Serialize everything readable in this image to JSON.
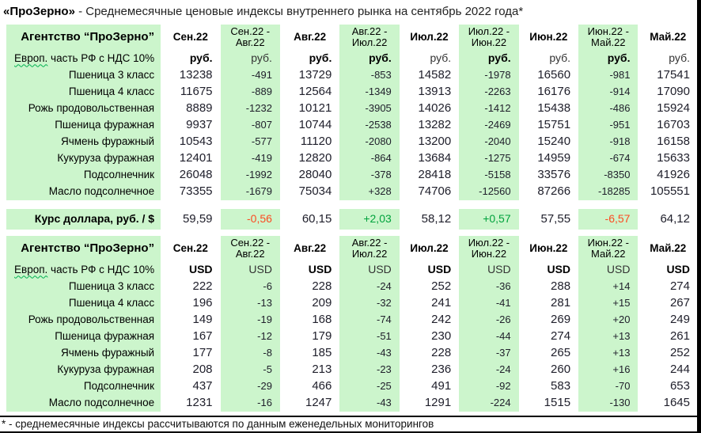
{
  "title": {
    "brand": "«ПроЗерно»",
    "rest": " - Среднемесячные ценовые индексы внутреннего рынка на сентябрь 2022 года*"
  },
  "footer": {
    "text": "* - среднемесячные индексы рассчитываются по данным еженедельных мониторингов"
  },
  "colors": {
    "cell_green": "#ccf5cc",
    "negative_text": "#fc4b22",
    "positive_text": "#00a23c",
    "value_text": "#20202c",
    "border_black": "#000000",
    "spellcheck_squiggle": "#00b050"
  },
  "chart_data": {
    "type": "table",
    "title": "«ПроЗерно» - Среднемесячные ценовые индексы внутреннего рынка на сентябрь 2022 года*",
    "columns": [
      [
        "Сен.22"
      ],
      [
        "Сен.22 -",
        "Авг.22"
      ],
      [
        "Авг.22"
      ],
      [
        "Авг.22 -",
        "Июл.22"
      ],
      [
        "Июл.22"
      ],
      [
        "Июл.22 -",
        "Июн.22"
      ],
      [
        "Июн.22"
      ],
      [
        "Июн.22 -",
        "Май.22"
      ],
      [
        "Май.22"
      ]
    ],
    "column_kinds": [
      "month",
      "diff",
      "month",
      "diff",
      "month",
      "diff",
      "month",
      "diff",
      "month"
    ],
    "sections": [
      {
        "name": "rub",
        "corner": "Агентство “ПроЗерно”",
        "region_wavy": "Европ.",
        "region_rest": " часть РФ с НДС 10%",
        "unit": "руб.",
        "unit_bold": [
          true,
          false,
          true,
          true,
          false,
          true,
          false,
          true,
          false
        ],
        "categories": [
          "Пшеница 3 класс",
          "Пшеница 4 класс",
          "Рожь продовольственная",
          "Пшеница фуражная",
          "Ячмень фуражный",
          "Кукуруза фуражная",
          "Подсолнечник",
          "Масло подсолнечное"
        ],
        "rows": [
          [
            "13238",
            "-491",
            "13729",
            "-853",
            "14582",
            "-1978",
            "16560",
            "-981",
            "17541"
          ],
          [
            "11675",
            "-889",
            "12564",
            "-1349",
            "13913",
            "-2263",
            "16176",
            "-914",
            "17090"
          ],
          [
            "8889",
            "-1232",
            "10121",
            "-3905",
            "14026",
            "-1412",
            "15438",
            "-486",
            "15924"
          ],
          [
            "9937",
            "-807",
            "10744",
            "-2538",
            "13282",
            "-2469",
            "15751",
            "-951",
            "16703"
          ],
          [
            "10543",
            "-577",
            "11120",
            "-2080",
            "13200",
            "-2040",
            "15240",
            "-918",
            "16158"
          ],
          [
            "12401",
            "-419",
            "12820",
            "-864",
            "13684",
            "-1275",
            "14959",
            "-674",
            "15633"
          ],
          [
            "26048",
            "-1992",
            "28040",
            "-378",
            "28418",
            "-5158",
            "33576",
            "-8350",
            "41926"
          ],
          [
            "73355",
            "-1679",
            "75034",
            "+328",
            "74706",
            "-12560",
            "87266",
            "-18285",
            "105551"
          ]
        ]
      },
      {
        "name": "usd",
        "corner": "Агентство “ПроЗерно”",
        "region_wavy": "Европ.",
        "region_rest": " часть РФ с НДС 10%",
        "unit": "USD",
        "unit_bold": [
          true,
          false,
          true,
          false,
          true,
          false,
          true,
          false,
          true
        ],
        "categories": [
          "Пшеница 3 класс",
          "Пшеница 4 класс",
          "Рожь продовольственная",
          "Пшеница фуражная",
          "Ячмень фуражный",
          "Кукуруза фуражная",
          "Подсолнечник",
          "Масло подсолнечное"
        ],
        "rows": [
          [
            "222",
            "-6",
            "228",
            "-24",
            "252",
            "-36",
            "288",
            "+14",
            "274"
          ],
          [
            "196",
            "-13",
            "209",
            "-32",
            "241",
            "-41",
            "281",
            "+15",
            "267"
          ],
          [
            "149",
            "-19",
            "168",
            "-74",
            "242",
            "-26",
            "269",
            "+20",
            "249"
          ],
          [
            "167",
            "-12",
            "179",
            "-51",
            "230",
            "-44",
            "274",
            "+13",
            "261"
          ],
          [
            "177",
            "-8",
            "185",
            "-43",
            "228",
            "-37",
            "265",
            "+13",
            "252"
          ],
          [
            "208",
            "-5",
            "213",
            "-23",
            "236",
            "-24",
            "260",
            "+16",
            "244"
          ],
          [
            "437",
            "-29",
            "466",
            "-25",
            "491",
            "-92",
            "583",
            "-70",
            "653"
          ],
          [
            "1231",
            "-16",
            "1247",
            "-43",
            "1291",
            "-224",
            "1515",
            "-130",
            "1645"
          ]
        ]
      }
    ],
    "dollar_rate": {
      "label": "Курс доллара, руб. / $",
      "values": [
        "59,59",
        "-0,56",
        "60,15",
        "+2,03",
        "58,12",
        "+0,57",
        "57,55",
        "-6,57",
        "64,12"
      ]
    }
  }
}
